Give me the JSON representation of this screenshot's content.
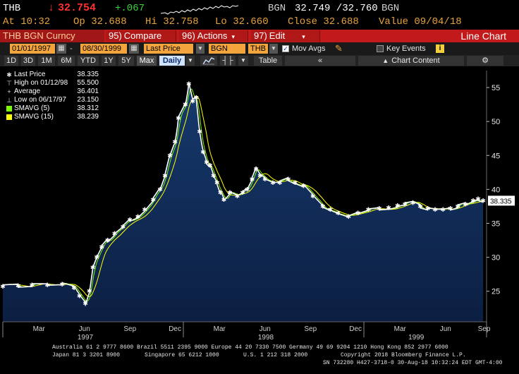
{
  "quote": {
    "ticker": "THB",
    "arrow": "↓",
    "last": "32.754",
    "change": "+.067",
    "bid_ask_label": "BGN",
    "bid_ask": "32.749 /32.760",
    "bid_ask_label2": "BGN",
    "at": "At 10:32",
    "open": "Op 32.688",
    "high": "Hi 32.758",
    "low": "Lo 32.660",
    "close": "Close 32.688",
    "value": "Value 09/04/18"
  },
  "menu": {
    "security": "THB BGN Curncy",
    "compare_num": "95)",
    "compare": "Compare",
    "actions_num": "96)",
    "actions": "Actions",
    "edit_num": "97)",
    "edit": "Edit",
    "title": "Line Chart"
  },
  "settings": {
    "start_date": "01/01/1997",
    "end_date": "08/30/1999",
    "field": "Last Price",
    "source": "BGN",
    "currency": "THB",
    "mov_avgs_label": "Mov Avgs",
    "key_events_label": "Key Events",
    "info_icon": "i"
  },
  "periods": {
    "items": [
      "1D",
      "3D",
      "1M",
      "6M",
      "YTD",
      "1Y",
      "5Y",
      "Max"
    ],
    "frequency": "Daily",
    "table": "Table",
    "chart_content": "Chart Content"
  },
  "legend": {
    "last_price_label": "Last Price",
    "last_price": "38.335",
    "high_label": "High on 01/12/98",
    "high": "55.500",
    "average_label": "Average",
    "average": "36.401",
    "low_label": "Low on 06/17/97",
    "low": "23.150",
    "smavg5_label": "SMAVG (5)",
    "smavg5": "38.312",
    "smavg15_label": "SMAVG (15)",
    "smavg15": "38.239",
    "smavg5_color": "#7CFC00",
    "smavg15_color": "#FFFF00",
    "last_tag": "38.335"
  },
  "chart_data": {
    "type": "area",
    "x_tick_labels": [
      "Mar",
      "Jun",
      "Sep",
      "Dec",
      "Mar",
      "Jun",
      "Sep",
      "Dec",
      "Mar",
      "Jun",
      "Sep"
    ],
    "x_year_labels": [
      "1997",
      "1998",
      "1999"
    ],
    "y_ticks": [
      25,
      30,
      35,
      40,
      45,
      50,
      55
    ],
    "ylim": [
      20.5,
      57.5
    ],
    "xlim": [
      "1997-01-01",
      "1999-09-06"
    ],
    "grid": false,
    "series": [
      {
        "name": "Last Price",
        "points": [
          [
            "1997-01-01",
            25.7
          ],
          [
            "1997-02-01",
            25.8
          ],
          [
            "1997-03-01",
            25.9
          ],
          [
            "1997-04-01",
            25.9
          ],
          [
            "1997-05-01",
            26.0
          ],
          [
            "1997-05-25",
            25.5
          ],
          [
            "1997-06-05",
            24.3
          ],
          [
            "1997-06-17",
            23.2
          ],
          [
            "1997-06-25",
            25.0
          ],
          [
            "1997-07-02",
            28.5
          ],
          [
            "1997-07-10",
            30.0
          ],
          [
            "1997-07-20",
            31.5
          ],
          [
            "1997-08-01",
            32.5
          ],
          [
            "1997-08-15",
            33.5
          ],
          [
            "1997-09-01",
            34.5
          ],
          [
            "1997-09-15",
            35.5
          ],
          [
            "1997-10-01",
            36.0
          ],
          [
            "1997-10-15",
            37.0
          ],
          [
            "1997-11-01",
            38.5
          ],
          [
            "1997-11-15",
            40.0
          ],
          [
            "1997-11-25",
            42.0
          ],
          [
            "1997-12-05",
            45.0
          ],
          [
            "1997-12-15",
            47.0
          ],
          [
            "1997-12-22",
            50.5
          ],
          [
            "1998-01-05",
            52.5
          ],
          [
            "1998-01-12",
            55.5
          ],
          [
            "1998-01-20",
            53.0
          ],
          [
            "1998-01-27",
            53.5
          ],
          [
            "1998-02-03",
            48.5
          ],
          [
            "1998-02-10",
            45.5
          ],
          [
            "1998-02-17",
            44.0
          ],
          [
            "1998-02-24",
            43.5
          ],
          [
            "1998-03-03",
            42.0
          ],
          [
            "1998-03-10",
            41.0
          ],
          [
            "1998-03-17",
            39.5
          ],
          [
            "1998-03-24",
            38.5
          ],
          [
            "1998-04-05",
            39.5
          ],
          [
            "1998-04-20",
            39.0
          ],
          [
            "1998-05-01",
            39.5
          ],
          [
            "1998-05-10",
            40.0
          ],
          [
            "1998-05-20",
            41.5
          ],
          [
            "1998-05-28",
            43.0
          ],
          [
            "1998-06-05",
            42.0
          ],
          [
            "1998-06-15",
            41.5
          ],
          [
            "1998-07-01",
            41.0
          ],
          [
            "1998-07-15",
            41.0
          ],
          [
            "1998-08-01",
            41.5
          ],
          [
            "1998-08-15",
            41.0
          ],
          [
            "1998-09-01",
            40.5
          ],
          [
            "1998-09-20",
            39.0
          ],
          [
            "1998-10-10",
            37.5
          ],
          [
            "1998-10-25",
            37.0
          ],
          [
            "1998-11-10",
            36.5
          ],
          [
            "1998-12-01",
            36.0
          ],
          [
            "1998-12-20",
            36.5
          ],
          [
            "1999-01-10",
            37.0
          ],
          [
            "1999-02-01",
            37.2
          ],
          [
            "1999-02-20",
            37.3
          ],
          [
            "1999-03-10",
            37.6
          ],
          [
            "1999-03-25",
            37.8
          ],
          [
            "1999-04-10",
            38.0
          ],
          [
            "1999-04-25",
            37.5
          ],
          [
            "1999-05-10",
            37.2
          ],
          [
            "1999-05-25",
            37.0
          ],
          [
            "1999-06-10",
            37.0
          ],
          [
            "1999-06-25",
            37.2
          ],
          [
            "1999-07-10",
            37.5
          ],
          [
            "1999-07-25",
            37.8
          ],
          [
            "1999-08-10",
            38.3
          ],
          [
            "1999-08-20",
            38.6
          ],
          [
            "1999-08-30",
            38.335
          ]
        ]
      }
    ]
  },
  "footer": {
    "line1": "Australia 61 2 9777 8600 Brazil 5511 2395 9000 Europe 44 20 7330 7500 Germany 49 69 9204 1210 Hong Kong 852 2977 6000",
    "line2a": "Japan 81 3 3201 8900",
    "line2b": "Singapore 65 6212 1000",
    "line2c": "U.S. 1 212 318 2000",
    "line2d": "Copyright 2018 Bloomberg Finance L.P.",
    "line3": "SN 732280 H427-3718-0 30-Aug-18 10:32:24 EDT  GMT-4:00"
  }
}
